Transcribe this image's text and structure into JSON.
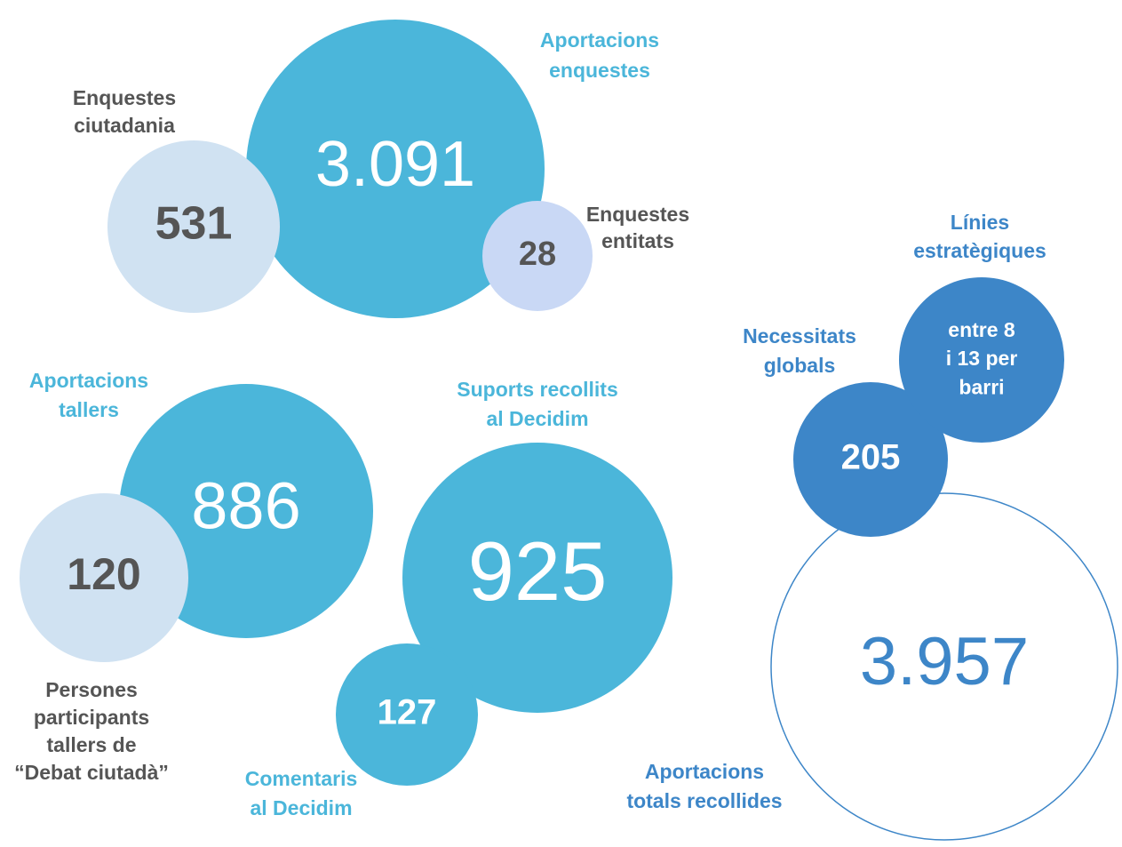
{
  "bubbles": [
    {
      "value": "3.091"
    },
    {
      "value": "531"
    },
    {
      "value": "28"
    },
    {
      "value": "886"
    },
    {
      "value": "120"
    },
    {
      "value": "925"
    },
    {
      "value": "127"
    },
    {
      "value": "3.957"
    },
    {
      "value": "205"
    },
    {
      "value": [
        "entre 8",
        "i 13 per",
        "barri"
      ]
    }
  ],
  "labels": [
    [
      "Aportacions",
      "enquestes"
    ],
    [
      "Enquestes",
      "ciutadania"
    ],
    [
      "Enquestes",
      "entitats"
    ],
    [
      "Aportacions",
      "tallers"
    ],
    [
      "Suports recollits",
      "al Decidim"
    ],
    [
      "Necessitats",
      "globals"
    ],
    [
      "Línies",
      "estratègiques"
    ],
    [
      "Persones",
      "participants",
      "tallers de",
      "“Debat ciutadà”"
    ],
    [
      "Comentaris",
      "al Decidim"
    ],
    [
      "Aportacions",
      "totals recollides"
    ]
  ]
}
